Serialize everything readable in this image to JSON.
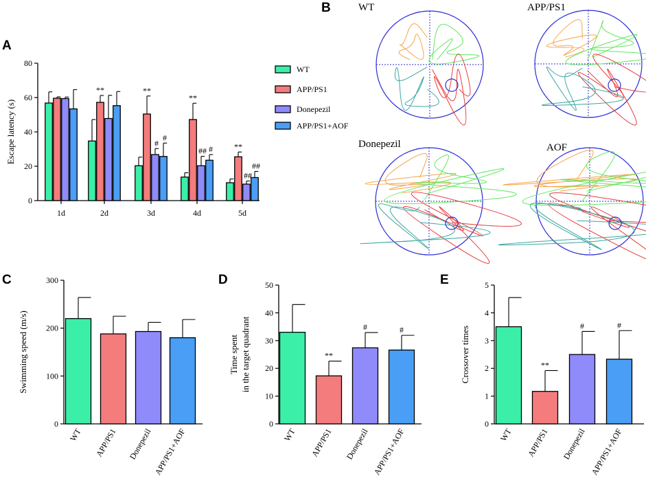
{
  "panel_letters": {
    "a": "A",
    "b": "B",
    "c": "C",
    "d": "D",
    "e": "E"
  },
  "colors": {
    "WT": "#3cefa8",
    "APP/PS1": "#f47c7c",
    "Donepezil": "#8f8bfb",
    "APP/PS1+AOF": "#4a9ef5",
    "axis": "#000000",
    "pool": "#2a2ad6"
  },
  "chart_data": [
    {
      "id": "A",
      "type": "bar",
      "title": "",
      "xlabel": "",
      "ylabel": "Escape latency (s)",
      "ylim": [
        0,
        80
      ],
      "yticks": [
        "0",
        "20",
        "40",
        "60",
        "80"
      ],
      "categories": [
        "1d",
        "2d",
        "3d",
        "4d",
        "5d"
      ],
      "legend": [
        "WT",
        "APP/PS1",
        "Donepezil",
        "APP/PS1+AOF"
      ],
      "series": [
        {
          "name": "WT",
          "values": [
            56.8,
            34.7,
            20.3,
            13.7,
            10.4
          ],
          "errors": [
            6.5,
            12.5,
            5,
            2.5,
            2.2
          ]
        },
        {
          "name": "APP/PS1",
          "values": [
            59.6,
            57.2,
            50.4,
            47.2,
            25.5
          ],
          "errors": [
            0.8,
            4,
            10.5,
            9.5,
            2.8
          ]
        },
        {
          "name": "Donepezil",
          "values": [
            59.4,
            47.8,
            26.8,
            20.3,
            9.6
          ],
          "errors": [
            0.9,
            13.5,
            3.5,
            5.5,
            1.8
          ]
        },
        {
          "name": "APP/PS1+AOF",
          "values": [
            53.4,
            55.3,
            25.7,
            23.5,
            13.4
          ],
          "errors": [
            11.2,
            8.2,
            7.8,
            3.3,
            3.6
          ]
        }
      ],
      "annotations": [
        {
          "category": "2d",
          "series": "APP/PS1",
          "text": "**"
        },
        {
          "category": "3d",
          "series": "APP/PS1",
          "text": "**"
        },
        {
          "category": "3d",
          "series": "Donepezil",
          "text": "#"
        },
        {
          "category": "3d",
          "series": "APP/PS1+AOF",
          "text": "#"
        },
        {
          "category": "4d",
          "series": "APP/PS1",
          "text": "**"
        },
        {
          "category": "4d",
          "series": "Donepezil",
          "text": "##"
        },
        {
          "category": "4d",
          "series": "APP/PS1+AOF",
          "text": "#"
        },
        {
          "category": "5d",
          "series": "APP/PS1",
          "text": "**"
        },
        {
          "category": "5d",
          "series": "Donepezil",
          "text": "##"
        },
        {
          "category": "5d",
          "series": "APP/PS1+AOF",
          "text": "##"
        }
      ]
    },
    {
      "id": "C",
      "type": "bar",
      "ylabel": "Swimming speed (m/s)",
      "ylim": [
        0,
        300
      ],
      "yticks": [
        "0",
        "100",
        "200",
        "300"
      ],
      "categories": [
        "WT",
        "APP/PS1",
        "Donepezil",
        "APP/PS1+AOF"
      ],
      "values": [
        220,
        188,
        193,
        180
      ],
      "errors": [
        44,
        37,
        19,
        38
      ],
      "annotations": [
        "",
        "",
        "",
        ""
      ]
    },
    {
      "id": "D",
      "type": "bar",
      "ylabel_lines": [
        "Time spent",
        "in the  target quadrant"
      ],
      "ylim": [
        0,
        50
      ],
      "yticks": [
        "0",
        "10",
        "20",
        "30",
        "40",
        "50"
      ],
      "categories": [
        "WT",
        "APP/PS1",
        "Donepezil",
        "APP/PS1+AOF"
      ],
      "values": [
        33,
        17.3,
        27.4,
        26.6
      ],
      "errors": [
        10,
        5.3,
        5.5,
        5.3
      ],
      "annotations": [
        "",
        "**",
        "#",
        "#"
      ]
    },
    {
      "id": "E",
      "type": "bar",
      "ylabel": "Crossover times",
      "ylim": [
        0,
        5
      ],
      "yticks": [
        "0",
        "1",
        "2",
        "3",
        "4",
        "5"
      ],
      "categories": [
        "WT",
        "APP/PS1",
        "Donepezil",
        "APP/PS1+AOF"
      ],
      "values": [
        3.5,
        1.17,
        2.5,
        2.33
      ],
      "errors": [
        1.05,
        0.75,
        0.83,
        1.03
      ],
      "annotations": [
        "",
        "**",
        "#",
        "#"
      ]
    }
  ],
  "maze_labels": {
    "wt": "WT",
    "app": "APP/PS1",
    "donepezil": "Donepezil",
    "aof": "AOF"
  },
  "maze_trace_colors": [
    "#f5a44a",
    "#5fe85f",
    "#e83a3a",
    "#3aa79f"
  ]
}
